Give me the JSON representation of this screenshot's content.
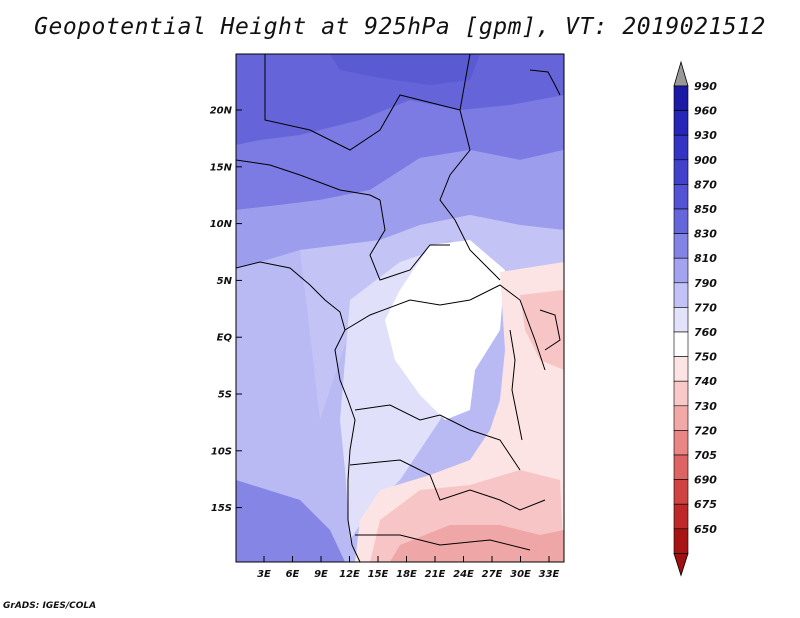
{
  "title": "Geopotential Height at 925hPa [gpm], VT: 2019021512",
  "credit": "GrADS: IGES/COLA",
  "lat_labels": [
    "20N",
    "15N",
    "10N",
    "5N",
    "EQ",
    "5S",
    "10S",
    "15S"
  ],
  "lon_labels": [
    "3E",
    "6E",
    "9E",
    "12E",
    "15E",
    "18E",
    "21E",
    "24E",
    "27E",
    "30E",
    "33E"
  ],
  "colorbar": {
    "levels": [
      "990",
      "960",
      "930",
      "900",
      "870",
      "850",
      "830",
      "810",
      "790",
      "770",
      "760",
      "750",
      "740",
      "730",
      "720",
      "705",
      "690",
      "675",
      "650"
    ],
    "colors": [
      "#1a1aa6",
      "#2626b8",
      "#3333c4",
      "#4141cc",
      "#5353d4",
      "#6666dc",
      "#8383e6",
      "#a3a3ef",
      "#c2c2f6",
      "#e2e2fb",
      "#ffffff",
      "#fde4e4",
      "#f9c8c8",
      "#f3a8a8",
      "#ea8585",
      "#de6363",
      "#d04343",
      "#be2828",
      "#a81414"
    ],
    "cap_top_color": "#999999",
    "cap_bottom_color": "#a01010"
  }
}
